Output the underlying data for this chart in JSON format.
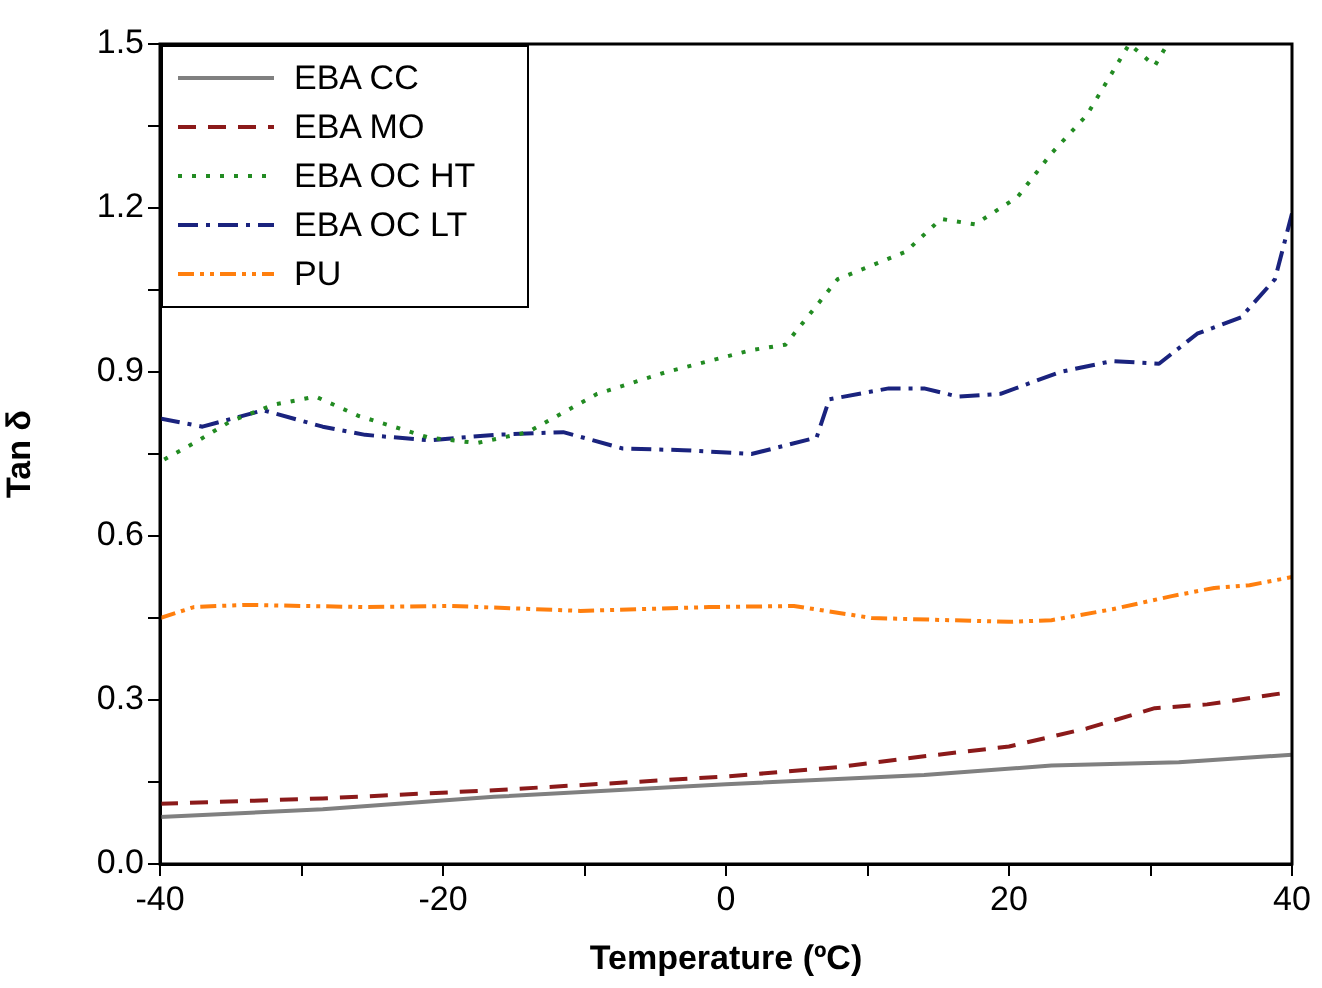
{
  "chart_data": {
    "type": "line",
    "xlabel": "Temperature (ºC)",
    "ylabel": "Tan δ",
    "xlim": [
      -40,
      40
    ],
    "xticks": [
      -40,
      {
        "value": -30,
        "label": null
      },
      -20,
      {
        "value": -10,
        "label": null
      },
      0,
      {
        "value": 10,
        "label": null
      },
      20,
      {
        "value": 30,
        "label": null
      },
      40
    ],
    "ylim": [
      0,
      1.5
    ],
    "yticks": [
      {
        "value": 0,
        "label": "0.0"
      },
      {
        "value": 0.15,
        "label": null
      },
      {
        "value": 0.3,
        "label": "0.3"
      },
      {
        "value": 0.45,
        "label": null
      },
      {
        "value": 0.6,
        "label": "0.6"
      },
      {
        "value": 0.75,
        "label": null
      },
      {
        "value": 0.9,
        "label": "0.9"
      },
      {
        "value": 1.05,
        "label": null
      },
      {
        "value": 1.2,
        "label": "1.2"
      },
      {
        "value": 1.35,
        "label": null
      },
      {
        "value": 1.5,
        "label": "1.5"
      }
    ],
    "grid": false,
    "legend": "top left",
    "marker": "none",
    "series": [
      {
        "name": "EBA CC",
        "color": "#808080",
        "line_style": "solid",
        "x": [
          -40,
          -28.5,
          -16.4,
          0,
          14,
          23,
          32,
          40
        ],
        "values": [
          0.086,
          0.1,
          0.123,
          0.146,
          0.163,
          0.18,
          0.186,
          0.2
        ]
      },
      {
        "name": "EBA MO",
        "color": "#8b1a1a",
        "line_style": "dashed",
        "x": [
          -40,
          -28.5,
          -16.4,
          0,
          7.9,
          14,
          20,
          25.5,
          30.3,
          34,
          40
        ],
        "values": [
          0.11,
          0.12,
          0.135,
          0.16,
          0.177,
          0.197,
          0.215,
          0.248,
          0.285,
          0.292,
          0.315
        ]
      },
      {
        "name": "EBA OC HT",
        "color": "#228b22",
        "line_style": "dotted",
        "x": [
          -39.7,
          -37.6,
          -35,
          -32,
          -29,
          -26,
          -21,
          -17.6,
          -14,
          -9.1,
          -4.2,
          1.8,
          4.2,
          7.9,
          12.7,
          15.2,
          17.6,
          20.6,
          23,
          25.5,
          28.5,
          30.3,
          31.2
        ],
        "values": [
          0.74,
          0.77,
          0.81,
          0.84,
          0.855,
          0.82,
          0.78,
          0.77,
          0.79,
          0.86,
          0.9,
          0.94,
          0.95,
          1.07,
          1.12,
          1.18,
          1.17,
          1.22,
          1.3,
          1.37,
          1.5,
          1.46,
          1.5
        ]
      },
      {
        "name": "EBA OC LT",
        "color": "#1a237e",
        "line_style": "dashdot",
        "x": [
          -40,
          -37,
          -32.7,
          -28.5,
          -25.5,
          -21,
          -16.4,
          -11.5,
          -7.3,
          -3,
          1.8,
          6.4,
          7.3,
          11.5,
          14,
          16.4,
          19.4,
          23.6,
          27.3,
          30.6,
          33.3,
          36.4,
          38.8,
          40
        ],
        "values": [
          0.815,
          0.8,
          0.83,
          0.8,
          0.785,
          0.775,
          0.785,
          0.79,
          0.76,
          0.757,
          0.75,
          0.78,
          0.85,
          0.87,
          0.87,
          0.855,
          0.86,
          0.9,
          0.92,
          0.915,
          0.97,
          1.0,
          1.07,
          1.19
        ]
      },
      {
        "name": "PU",
        "color": "#ff7f0e",
        "line_style": "dashdotdot",
        "x": [
          -40,
          -37.6,
          -34,
          -25.5,
          -19.4,
          -10.3,
          -1.2,
          4.8,
          10.3,
          20,
          23,
          27.3,
          31.5,
          34.5,
          37,
          40
        ],
        "values": [
          0.45,
          0.47,
          0.474,
          0.47,
          0.472,
          0.463,
          0.47,
          0.472,
          0.45,
          0.443,
          0.446,
          0.466,
          0.49,
          0.505,
          0.51,
          0.525
        ]
      }
    ]
  }
}
